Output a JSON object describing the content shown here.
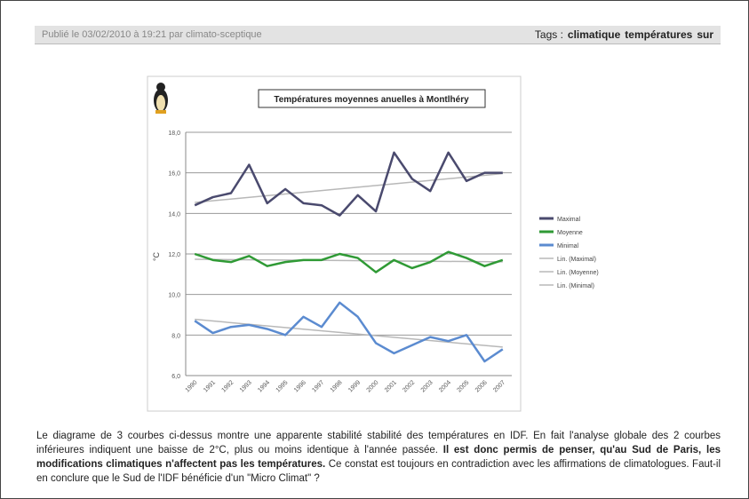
{
  "header": {
    "posted": "Publié le 03/02/2010 à 19:21 par climato-sceptique",
    "tags_label": "Tags :",
    "tags": [
      "climatique",
      "températures",
      "sur"
    ]
  },
  "chart": {
    "type": "line",
    "title": "Températures moyennes anuelles à Montlhéry",
    "y_label": "°C",
    "categories": [
      "1990",
      "1991",
      "1992",
      "1993",
      "1994",
      "1995",
      "1996",
      "1997",
      "1998",
      "1999",
      "2000",
      "2001",
      "2002",
      "2003",
      "2004",
      "2005",
      "2006",
      "2007"
    ],
    "ylim": [
      6,
      18
    ],
    "yticks": [
      {
        "value": 6,
        "label": "6,0"
      },
      {
        "value": 8,
        "label": "8,0"
      },
      {
        "value": 10,
        "label": "10,0"
      },
      {
        "value": 12,
        "label": "12,0"
      },
      {
        "value": 14,
        "label": "14,0"
      },
      {
        "value": 16,
        "label": "16,0"
      },
      {
        "value": 18,
        "label": "18,0"
      }
    ],
    "grid": true,
    "legend": "right",
    "trend_color": "#b8b8b8",
    "series": [
      {
        "name": "Maximal",
        "trend_name": "Lin. (Maximal)",
        "color": "#4a4a6e",
        "values": [
          14.4,
          14.8,
          15.0,
          16.4,
          14.5,
          15.2,
          14.5,
          14.4,
          13.9,
          14.9,
          14.1,
          17.0,
          15.7,
          15.1,
          17.0,
          15.6,
          16.0,
          16.0
        ]
      },
      {
        "name": "Moyenne",
        "trend_name": "Lin. (Moyenne)",
        "color": "#2f9a35",
        "values": [
          12.0,
          11.7,
          11.6,
          11.9,
          11.4,
          11.6,
          11.7,
          11.7,
          12.0,
          11.8,
          11.1,
          11.7,
          11.3,
          11.6,
          12.1,
          11.8,
          11.4,
          11.7
        ]
      },
      {
        "name": "Minimal",
        "trend_name": "Lin. (Minimal)",
        "color": "#5b8bd0",
        "values": [
          8.7,
          8.1,
          8.4,
          8.5,
          8.3,
          8.0,
          8.9,
          8.4,
          9.6,
          8.9,
          7.6,
          7.1,
          7.5,
          7.9,
          7.7,
          8.0,
          6.7,
          7.3
        ]
      }
    ]
  },
  "body": {
    "before": "Le diagrame de 3 courbes ci-dessus montre une apparente stabilité stabilité des températures en IDF. En fait l'analyse globale des 2 courbes inférieures indiquent une baisse de 2°C, plus ou moins identique à l'année passée. ",
    "bold": "Il est donc permis de penser, qu'au Sud de Paris, les modifications climatiques n'affectent pas les températures.",
    "after": " Ce constat est toujours en contradiction avec les affirmations de climatologues. Faut-il en conclure que le Sud de l'IDF bénéficie d'un \"Micro Climat\" ?"
  }
}
